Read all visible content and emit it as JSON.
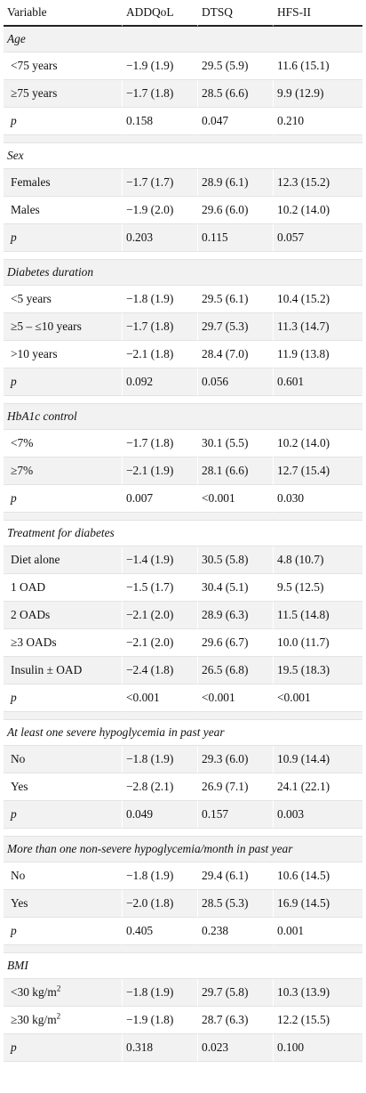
{
  "header": [
    "Variable",
    "ADDQoL",
    "DTSQ",
    "HFS-II"
  ],
  "groups": [
    {
      "title": "Age",
      "rows": [
        {
          "label": "<75 years",
          "addqol": "−1.9 (1.9)",
          "dtsq": "29.5 (5.9)",
          "hfs": "11.6 (15.1)"
        },
        {
          "label": "≥75 years",
          "addqol": "−1.7 (1.8)",
          "dtsq": "28.5 (6.6)",
          "hfs": "9.9 (12.9)"
        },
        {
          "label": "p",
          "addqol": "0.158",
          "dtsq": "0.047",
          "hfs": "0.210",
          "is_p": true
        }
      ]
    },
    {
      "title": "Sex",
      "rows": [
        {
          "label": "Females",
          "addqol": "−1.7 (1.7)",
          "dtsq": "28.9 (6.1)",
          "hfs": "12.3 (15.2)"
        },
        {
          "label": "Males",
          "addqol": "−1.9 (2.0)",
          "dtsq": "29.6 (6.0)",
          "hfs": "10.2 (14.0)"
        },
        {
          "label": "p",
          "addqol": "0.203",
          "dtsq": "0.115",
          "hfs": "0.057",
          "is_p": true
        }
      ]
    },
    {
      "title": "Diabetes duration",
      "rows": [
        {
          "label": "<5 years",
          "addqol": "−1.8 (1.9)",
          "dtsq": "29.5 (6.1)",
          "hfs": "10.4 (15.2)"
        },
        {
          "label": "≥5 – ≤10 years",
          "addqol": "−1.7 (1.8)",
          "dtsq": "29.7 (5.3)",
          "hfs": "11.3 (14.7)"
        },
        {
          "label": ">10 years",
          "addqol": "−2.1 (1.8)",
          "dtsq": "28.4 (7.0)",
          "hfs": "11.9 (13.8)"
        },
        {
          "label": "p",
          "addqol": "0.092",
          "dtsq": "0.056",
          "hfs": "0.601",
          "is_p": true
        }
      ]
    },
    {
      "title": "HbA1c control",
      "rows": [
        {
          "label": "<7%",
          "addqol": "−1.7 (1.8)",
          "dtsq": "30.1 (5.5)",
          "hfs": "10.2 (14.0)"
        },
        {
          "label": "≥7%",
          "addqol": "−2.1 (1.9)",
          "dtsq": "28.1 (6.6)",
          "hfs": "12.7 (15.4)"
        },
        {
          "label": "p",
          "addqol": "0.007",
          "dtsq": "<0.001",
          "hfs": "0.030",
          "is_p": true
        }
      ]
    },
    {
      "title": "Treatment for diabetes",
      "rows": [
        {
          "label": "Diet alone",
          "addqol": "−1.4 (1.9)",
          "dtsq": "30.5 (5.8)",
          "hfs": "4.8 (10.7)"
        },
        {
          "label": "1 OAD",
          "addqol": "−1.5 (1.7)",
          "dtsq": "30.4 (5.1)",
          "hfs": "9.5 (12.5)"
        },
        {
          "label": "2 OADs",
          "addqol": "−2.1 (2.0)",
          "dtsq": "28.9 (6.3)",
          "hfs": "11.5 (14.8)"
        },
        {
          "label": "≥3 OADs",
          "addqol": "−2.1 (2.0)",
          "dtsq": "29.6 (6.7)",
          "hfs": "10.0 (11.7)"
        },
        {
          "label": "Insulin ± OAD",
          "addqol": "−2.4 (1.8)",
          "dtsq": "26.5 (6.8)",
          "hfs": "19.5 (18.3)"
        },
        {
          "label": "p",
          "addqol": "<0.001",
          "dtsq": "<0.001",
          "hfs": "<0.001",
          "is_p": true
        }
      ]
    },
    {
      "title": "At least one severe hypoglycemia in past year",
      "rows": [
        {
          "label": "No",
          "addqol": "−1.8 (1.9)",
          "dtsq": "29.3 (6.0)",
          "hfs": "10.9 (14.4)"
        },
        {
          "label": "Yes",
          "addqol": "−2.8 (2.1)",
          "dtsq": "26.9 (7.1)",
          "hfs": "24.1 (22.1)"
        },
        {
          "label": "p",
          "addqol": "0.049",
          "dtsq": "0.157",
          "hfs": "0.003",
          "is_p": true
        }
      ]
    },
    {
      "title": "More than one non-severe hypoglycemia/month in past year",
      "rows": [
        {
          "label": "No",
          "addqol": "−1.8 (1.9)",
          "dtsq": "29.4 (6.1)",
          "hfs": "10.6 (14.5)"
        },
        {
          "label": "Yes",
          "addqol": "−2.0 (1.8)",
          "dtsq": "28.5 (5.3)",
          "hfs": "16.9 (14.5)"
        },
        {
          "label": "p",
          "addqol": "0.405",
          "dtsq": "0.238",
          "hfs": "0.001",
          "is_p": true
        }
      ]
    },
    {
      "title": "BMI",
      "rows": [
        {
          "label": "<30 kg/m",
          "sup": "2",
          "addqol": "−1.8 (1.9)",
          "dtsq": "29.7 (5.8)",
          "hfs": "10.3 (13.9)"
        },
        {
          "label": "≥30 kg/m",
          "sup": "2",
          "addqol": "−1.9 (1.8)",
          "dtsq": "28.7 (6.3)",
          "hfs": "12.2 (15.5)"
        },
        {
          "label": "p",
          "addqol": "0.318",
          "dtsq": "0.023",
          "hfs": "0.100",
          "is_p": true
        }
      ]
    }
  ]
}
